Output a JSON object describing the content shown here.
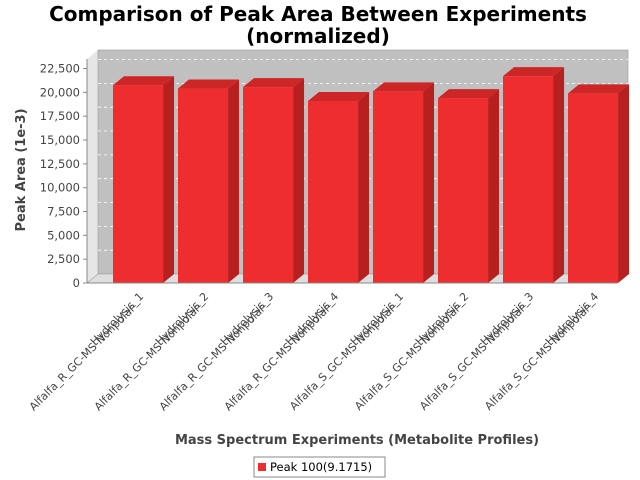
{
  "chart_data": {
    "type": "bar",
    "title": "Comparison of Peak Area Between Experiments",
    "subtitle": "(normalized)",
    "xlabel": "Mass Spectrum Experiments (Metabolite Profiles)",
    "ylabel": "Peak Area (1e-3)",
    "ylim": [
      0,
      23500
    ],
    "yticks": [
      "0",
      "2,500",
      "5,000",
      "7,500",
      "10,000",
      "12,500",
      "15,000",
      "17,500",
      "20,000",
      "22,500"
    ],
    "ytick_values": [
      0,
      2500,
      5000,
      7500,
      10000,
      12500,
      15000,
      17500,
      20000,
      22500
    ],
    "grid": true,
    "legend_position": "bottom",
    "categories": [
      [
        "Alfalfa_R_GC-MS-Nonpolar-",
        "Hydrolysis_1"
      ],
      [
        "Alfalfa_R_GC-MS-Nonpolar-",
        "Hydrolysis_2"
      ],
      [
        "Alfalfa_R_GC-MS-Nonpolar-",
        "Hydrolysis_3"
      ],
      [
        "Alfalfa_R_GC-MS-Nonpolar-",
        "Hydrolysis_4"
      ],
      [
        "Alfalfa_S_GC-MS-Nonpolar-",
        "Hydrolysis_1"
      ],
      [
        "Alfalfa_S_GC-MS-Nonpolar-",
        "Hydrolysis_2"
      ],
      [
        "Alfalfa_S_GC-MS-Nonpolar-",
        "Hydrolysis_3"
      ],
      [
        "Alfalfa_S_GC-MS-Nonpolar-",
        "Hydrolysis_4"
      ]
    ],
    "series": [
      {
        "name": "Peak 100(9.1715)",
        "color": "#ee2e2e",
        "values": [
          20750,
          20400,
          20550,
          19100,
          20100,
          19400,
          21700,
          19900
        ]
      }
    ],
    "colors": {
      "plot_background": "#c0c0c0",
      "plot_floor": "#dedede",
      "plot_wall": "#e6e6e6",
      "bar_front": "#ee2e2e",
      "bar_side": "#b82020",
      "bar_top": "#cc2626"
    }
  }
}
